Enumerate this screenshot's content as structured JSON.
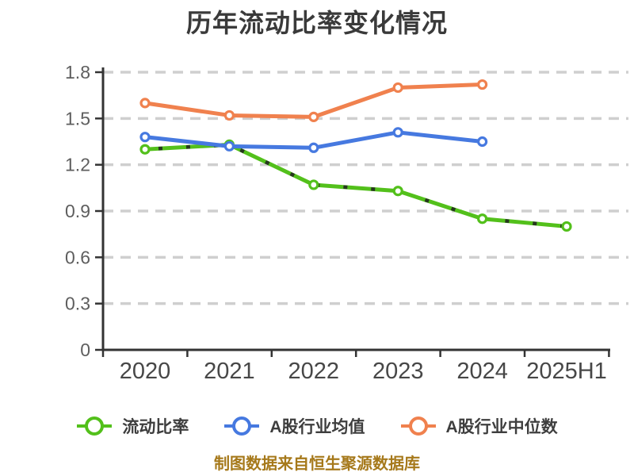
{
  "title": "历年流动比率变化情况",
  "footer_note": "制图数据来自恒生聚源数据库",
  "colors": {
    "background": "#ffffff",
    "title_text": "#3a3a3a",
    "axis_line": "#333333",
    "gridline": "#cfcfcf",
    "y_tick_label": "#5e5e5e",
    "x_tick_label": "#474747",
    "legend_text": "#3e3e3e",
    "footer_text": "#a6791b",
    "series_current_ratio": "#53c01b",
    "series_industry_mean": "#4679e0",
    "series_industry_median": "#f0814e",
    "marker_fill": "#ffffff",
    "green_dash_overlay": "#1f1f1f"
  },
  "chart_data": {
    "type": "line",
    "title": "历年流动比率变化情况",
    "categories": [
      "2020",
      "2021",
      "2022",
      "2023",
      "2024",
      "2025H1"
    ],
    "series": [
      {
        "name": "流动比率",
        "color": "#53c01b",
        "dashed_overlay": true,
        "values": [
          1.3,
          1.33,
          1.07,
          1.03,
          0.85,
          0.8
        ]
      },
      {
        "name": "A股行业均值",
        "color": "#4679e0",
        "dashed_overlay": false,
        "values": [
          1.38,
          1.32,
          1.31,
          1.41,
          1.35,
          null
        ]
      },
      {
        "name": "A股行业中位数",
        "color": "#f0814e",
        "dashed_overlay": false,
        "values": [
          1.6,
          1.52,
          1.51,
          1.7,
          1.72,
          null
        ]
      }
    ],
    "xlabel": "",
    "ylabel": "",
    "ylim": [
      0,
      1.8
    ],
    "yticks": [
      0,
      0.3,
      0.6,
      0.9,
      1.2,
      1.5,
      1.8
    ],
    "grid": "horizontal-dashed",
    "legend_position": "bottom",
    "marker": "circle-white-fill",
    "source_note": "制图数据来自恒生聚源数据库"
  }
}
